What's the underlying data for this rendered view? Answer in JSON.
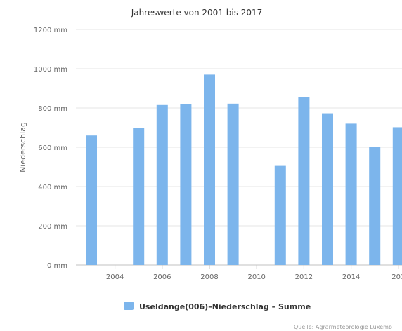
{
  "chart_data": {
    "type": "bar",
    "title": "Jahreswerte von 2001 bis 2017",
    "ylabel": "Niederschlag",
    "xlabel": "",
    "ylim": [
      0,
      1200
    ],
    "y_ticks": [
      "0 mm",
      "200 mm",
      "400 mm",
      "600 mm",
      "800 mm",
      "1000 mm",
      "1200 mm"
    ],
    "x_ticks": [
      "2004",
      "2006",
      "2008",
      "2010",
      "2012",
      "2014",
      "201"
    ],
    "categories": [
      "2003",
      "2004",
      "2005",
      "2006",
      "2007",
      "2008",
      "2009",
      "2010",
      "2011",
      "2012",
      "2013",
      "2014",
      "2015",
      "2016"
    ],
    "series": [
      {
        "name": "Useldange(006)–Niederschlag – Summe",
        "color": "#7cb5ec",
        "values": [
          660,
          null,
          700,
          815,
          820,
          970,
          822,
          null,
          505,
          857,
          773,
          720,
          603,
          702
        ]
      }
    ],
    "grid": true,
    "legend": "bottom-center",
    "credit": "Quelle: Agrarmeteorologie Luxemb"
  }
}
